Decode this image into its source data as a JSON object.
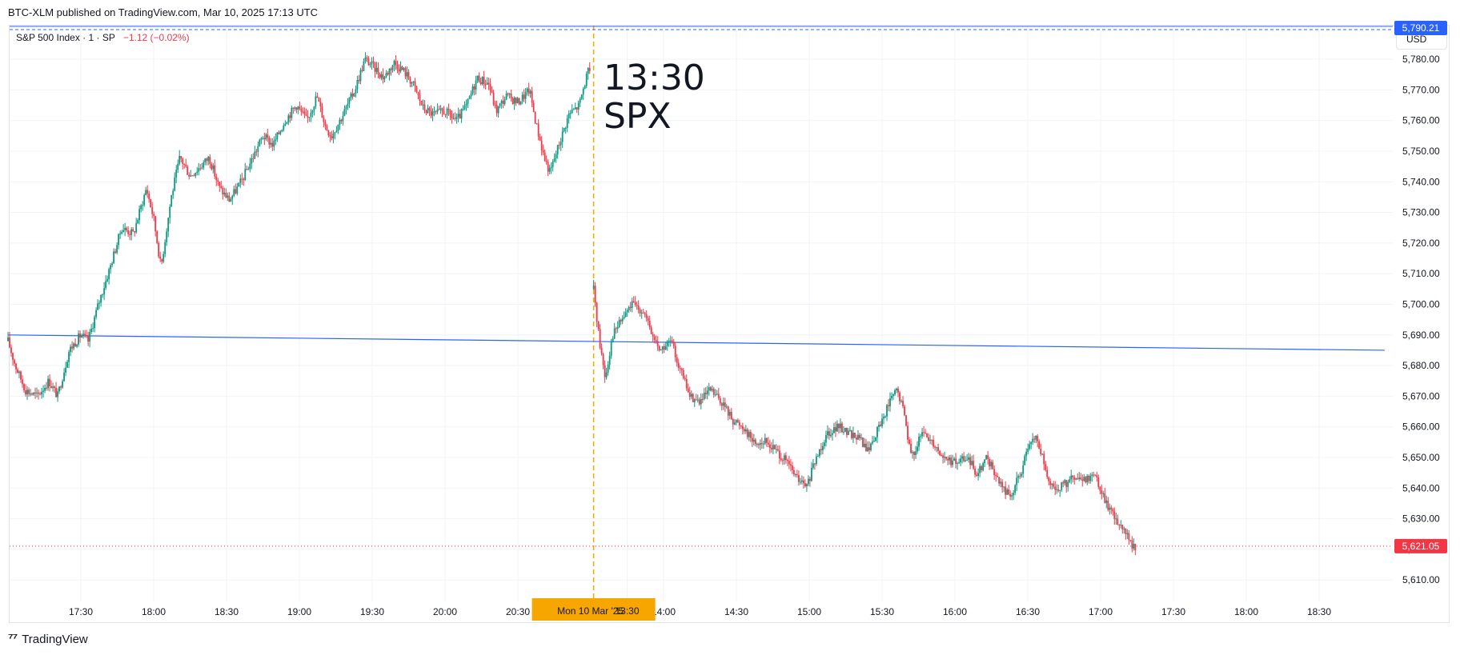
{
  "header": {
    "published_text": "BTC-XLM published on TradingView.com, Mar 10, 2025 17:13 UTC"
  },
  "legend": {
    "symbol": "S&P 500 Index · 1 · SP",
    "change": "−1.12 (−0.02%)"
  },
  "currency_button": "USD",
  "annotation": {
    "line1": "13:30",
    "line2": "SPX"
  },
  "footer": {
    "brand": "TradingView"
  },
  "colors": {
    "up": "#089981",
    "down": "#f23645",
    "trendline": "#2962ff",
    "marker": "#f7a600",
    "grid": "#f0f3fa"
  },
  "chart_data": {
    "type": "candlestick",
    "y_ticks": [
      "5,610.00",
      "5,620.00",
      "5,630.00",
      "5,640.00",
      "5,650.00",
      "5,660.00",
      "5,670.00",
      "5,680.00",
      "5,690.00",
      "5,700.00",
      "5,710.00",
      "5,720.00",
      "5,730.00",
      "5,740.00",
      "5,750.00",
      "5,760.00",
      "5,770.00",
      "5,780.00"
    ],
    "ylim": [
      5603,
      5791
    ],
    "x_ticks": [
      {
        "label": "17:30",
        "slot": 0.5
      },
      {
        "label": "18:00",
        "slot": 1
      },
      {
        "label": "18:30",
        "slot": 1.5
      },
      {
        "label": "19:00",
        "slot": 2
      },
      {
        "label": "19:30",
        "slot": 2.5
      },
      {
        "label": "20:00",
        "slot": 3
      },
      {
        "label": "20:30",
        "slot": 3.5
      },
      {
        "label": "13:30",
        "slot": 4.25
      },
      {
        "label": "14:00",
        "slot": 4.5
      },
      {
        "label": "14:30",
        "slot": 5
      },
      {
        "label": "15:00",
        "slot": 5.5
      },
      {
        "label": "15:30",
        "slot": 6
      },
      {
        "label": "16:00",
        "slot": 6.5
      },
      {
        "label": "16:30",
        "slot": 7
      },
      {
        "label": "17:00",
        "slot": 7.5
      },
      {
        "label": "17:30",
        "slot": 8
      },
      {
        "label": "18:00",
        "slot": 8.5
      },
      {
        "label": "18:30",
        "slot": 9
      }
    ],
    "date_marker": {
      "label": "Mon 10 Mar '25",
      "slot": 4.02
    },
    "price_labels": [
      {
        "value": "5,790.21",
        "price": 5790.21,
        "color": "#2962ff"
      },
      {
        "value": "5,621.05",
        "price": 5621.05,
        "color": "#f23645"
      }
    ],
    "trendline": {
      "start": {
        "slot": 0,
        "price": 5690
      },
      "end": {
        "slot": 9.45,
        "price": 5685
      }
    },
    "path_session1": [
      [
        0,
        5688
      ],
      [
        0.05,
        5680
      ],
      [
        0.12,
        5672
      ],
      [
        0.2,
        5670
      ],
      [
        0.28,
        5675
      ],
      [
        0.34,
        5670
      ],
      [
        0.42,
        5685
      ],
      [
        0.5,
        5690
      ],
      [
        0.55,
        5688
      ],
      [
        0.62,
        5700
      ],
      [
        0.7,
        5712
      ],
      [
        0.78,
        5725
      ],
      [
        0.86,
        5723
      ],
      [
        0.95,
        5738
      ],
      [
        1.0,
        5728
      ],
      [
        1.05,
        5712
      ],
      [
        1.12,
        5735
      ],
      [
        1.18,
        5748
      ],
      [
        1.25,
        5742
      ],
      [
        1.32,
        5745
      ],
      [
        1.38,
        5748
      ],
      [
        1.45,
        5738
      ],
      [
        1.52,
        5734
      ],
      [
        1.6,
        5740
      ],
      [
        1.68,
        5748
      ],
      [
        1.75,
        5755
      ],
      [
        1.82,
        5752
      ],
      [
        1.9,
        5760
      ],
      [
        1.98,
        5765
      ],
      [
        2.05,
        5760
      ],
      [
        2.12,
        5768
      ],
      [
        2.18,
        5758
      ],
      [
        2.22,
        5755
      ],
      [
        2.3,
        5762
      ],
      [
        2.38,
        5770
      ],
      [
        2.45,
        5780
      ],
      [
        2.5,
        5778
      ],
      [
        2.58,
        5774
      ],
      [
        2.65,
        5779
      ],
      [
        2.72,
        5776
      ],
      [
        2.78,
        5772
      ],
      [
        2.85,
        5764
      ],
      [
        2.92,
        5762
      ],
      [
        3.0,
        5763
      ],
      [
        3.08,
        5760
      ],
      [
        3.15,
        5765
      ],
      [
        3.22,
        5774
      ],
      [
        3.3,
        5772
      ],
      [
        3.35,
        5763
      ],
      [
        3.42,
        5768
      ],
      [
        3.5,
        5766
      ],
      [
        3.58,
        5770
      ],
      [
        3.62,
        5760
      ],
      [
        3.68,
        5748
      ],
      [
        3.72,
        5743
      ],
      [
        3.78,
        5752
      ],
      [
        3.85,
        5762
      ],
      [
        3.92,
        5765
      ],
      [
        3.98,
        5776
      ],
      [
        4.0,
        5774
      ]
    ],
    "path_session2": [
      [
        4.02,
        5705
      ],
      [
        4.06,
        5688
      ],
      [
        4.1,
        5676
      ],
      [
        4.15,
        5690
      ],
      [
        4.2,
        5694
      ],
      [
        4.28,
        5700
      ],
      [
        4.36,
        5698
      ],
      [
        4.42,
        5690
      ],
      [
        4.48,
        5685
      ],
      [
        4.55,
        5688
      ],
      [
        4.62,
        5678
      ],
      [
        4.68,
        5670
      ],
      [
        4.75,
        5668
      ],
      [
        4.82,
        5672
      ],
      [
        4.9,
        5668
      ],
      [
        4.98,
        5662
      ],
      [
        5.05,
        5660
      ],
      [
        5.12,
        5655
      ],
      [
        5.2,
        5655
      ],
      [
        5.28,
        5652
      ],
      [
        5.35,
        5648
      ],
      [
        5.42,
        5643
      ],
      [
        5.48,
        5640
      ],
      [
        5.55,
        5650
      ],
      [
        5.62,
        5658
      ],
      [
        5.7,
        5660
      ],
      [
        5.78,
        5658
      ],
      [
        5.85,
        5656
      ],
      [
        5.9,
        5652
      ],
      [
        5.98,
        5660
      ],
      [
        6.05,
        5668
      ],
      [
        6.1,
        5672
      ],
      [
        6.15,
        5665
      ],
      [
        6.2,
        5650
      ],
      [
        6.28,
        5658
      ],
      [
        6.35,
        5655
      ],
      [
        6.42,
        5650
      ],
      [
        6.5,
        5648
      ],
      [
        6.58,
        5650
      ],
      [
        6.65,
        5645
      ],
      [
        6.72,
        5650
      ],
      [
        6.8,
        5642
      ],
      [
        6.88,
        5637
      ],
      [
        6.95,
        5645
      ],
      [
        7.0,
        5652
      ],
      [
        7.05,
        5657
      ],
      [
        7.1,
        5650
      ],
      [
        7.15,
        5640
      ],
      [
        7.22,
        5640
      ],
      [
        7.3,
        5643
      ],
      [
        7.38,
        5642
      ],
      [
        7.45,
        5645
      ],
      [
        7.5,
        5640
      ],
      [
        7.55,
        5634
      ],
      [
        7.6,
        5630
      ],
      [
        7.65,
        5628
      ],
      [
        7.7,
        5622
      ],
      [
        7.74,
        5621
      ]
    ]
  }
}
